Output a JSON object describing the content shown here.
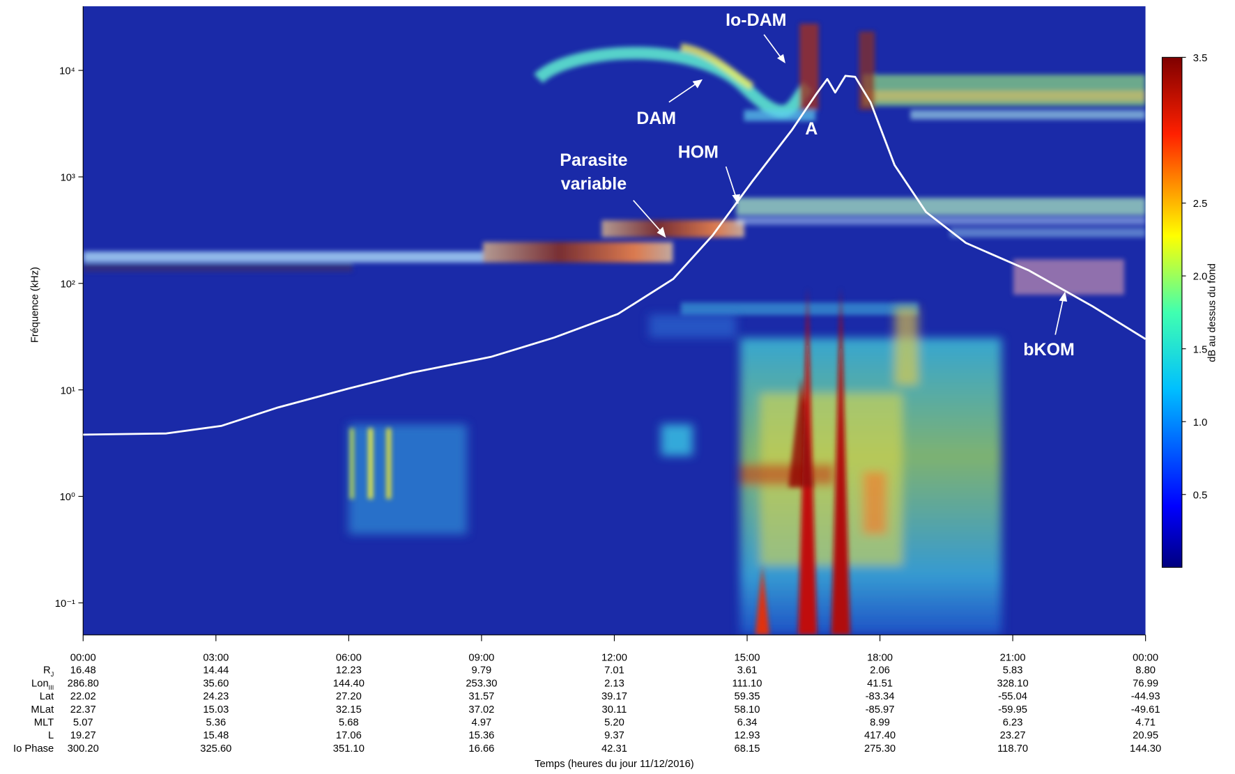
{
  "chart_data": {
    "type": "spectrogram",
    "y_label": "Fréquence (kHz)",
    "x_label": "Temps (heures du jour 11/12/2016)",
    "log_y": true,
    "xlim": [
      0,
      24
    ],
    "ylim": [
      0.05,
      40000
    ],
    "xticks": [
      {
        "value": 0,
        "label": "00:00"
      },
      {
        "value": 3,
        "label": "03:00"
      },
      {
        "value": 6,
        "label": "06:00"
      },
      {
        "value": 9,
        "label": "09:00"
      },
      {
        "value": 12,
        "label": "12:00"
      },
      {
        "value": 15,
        "label": "15:00"
      },
      {
        "value": 18,
        "label": "18:00"
      },
      {
        "value": 21,
        "label": "21:00"
      },
      {
        "value": 24,
        "label": "00:00"
      }
    ],
    "yticks": [
      {
        "value": 0.1,
        "label": "10⁻¹"
      },
      {
        "value": 1,
        "label": "10⁰"
      },
      {
        "value": 10,
        "label": "10¹"
      },
      {
        "value": 100,
        "label": "10²"
      },
      {
        "value": 1000,
        "label": "10³"
      },
      {
        "value": 10000,
        "label": "10⁴"
      }
    ],
    "colorbar": {
      "label": "dB au dessus du fond",
      "clim": [
        0,
        3.5
      ],
      "ticks": [
        {
          "value": 0.5,
          "label": "0.5"
        },
        {
          "value": 1,
          "label": "1.0"
        },
        {
          "value": 1.5,
          "label": "1.5"
        },
        {
          "value": 2,
          "label": "2.0"
        },
        {
          "value": 2.5,
          "label": "2.5"
        },
        3.5
      ]
    },
    "series": [
      {
        "color": "#ffffff",
        "x": [
          0,
          1.88,
          3.13,
          4.38,
          6.0,
          7.42,
          9.21,
          10.64,
          12.08,
          13.33,
          14.22,
          15.12,
          16.01,
          16.55,
          16.81,
          16.99,
          17.22,
          17.44,
          17.79,
          18.33,
          19.04,
          19.94,
          21.37,
          22.8,
          24
        ],
        "values": [
          3.8,
          3.9,
          4.6,
          6.8,
          10.3,
          14.5,
          20.4,
          31,
          51.6,
          110,
          282,
          912,
          2750,
          5900,
          8300,
          6200,
          8900,
          8700,
          5000,
          1290,
          468,
          240,
          132,
          61,
          30
        ]
      }
    ],
    "annotations": [
      "Io-DAM",
      "DAM",
      "A",
      "HOM",
      "Parasite",
      "variable",
      "bKOM"
    ],
    "ephemeris": {
      "rows": [
        {
          "label": "R",
          "sub": "J",
          "values": [
            "16.48",
            "14.44",
            "12.23",
            "9.79",
            "7.01",
            "3.61",
            "2.06",
            "5.83",
            "8.80"
          ]
        },
        {
          "label": "Lon",
          "sub": "III",
          "values": [
            "286.80",
            "35.60",
            "144.40",
            "253.30",
            "2.13",
            "111.10",
            "41.51",
            "328.10",
            "76.99"
          ]
        },
        {
          "label": "Lat",
          "values": [
            "22.02",
            "24.23",
            "27.20",
            "31.57",
            "39.17",
            "59.35",
            "-83.34",
            "-55.04",
            "-44.93"
          ]
        },
        {
          "label": "MLat",
          "values": [
            "22.37",
            "15.03",
            "32.15",
            "37.02",
            "30.11",
            "58.10",
            "-85.97",
            "-59.95",
            "-49.61"
          ]
        },
        {
          "label": "MLT",
          "values": [
            "5.07",
            "5.36",
            "5.68",
            "4.97",
            "5.20",
            "6.34",
            "8.99",
            "6.23",
            "4.71"
          ]
        },
        {
          "label": "L",
          "values": [
            "19.27",
            "15.48",
            "17.06",
            "15.36",
            "9.37",
            "12.93",
            "417.40",
            "23.27",
            "20.95"
          ]
        },
        {
          "label": "Io Phase",
          "values": [
            "300.20",
            "325.60",
            "351.10",
            "16.66",
            "42.31",
            "68.15",
            "275.30",
            "118.70",
            "144.30"
          ]
        }
      ]
    }
  }
}
